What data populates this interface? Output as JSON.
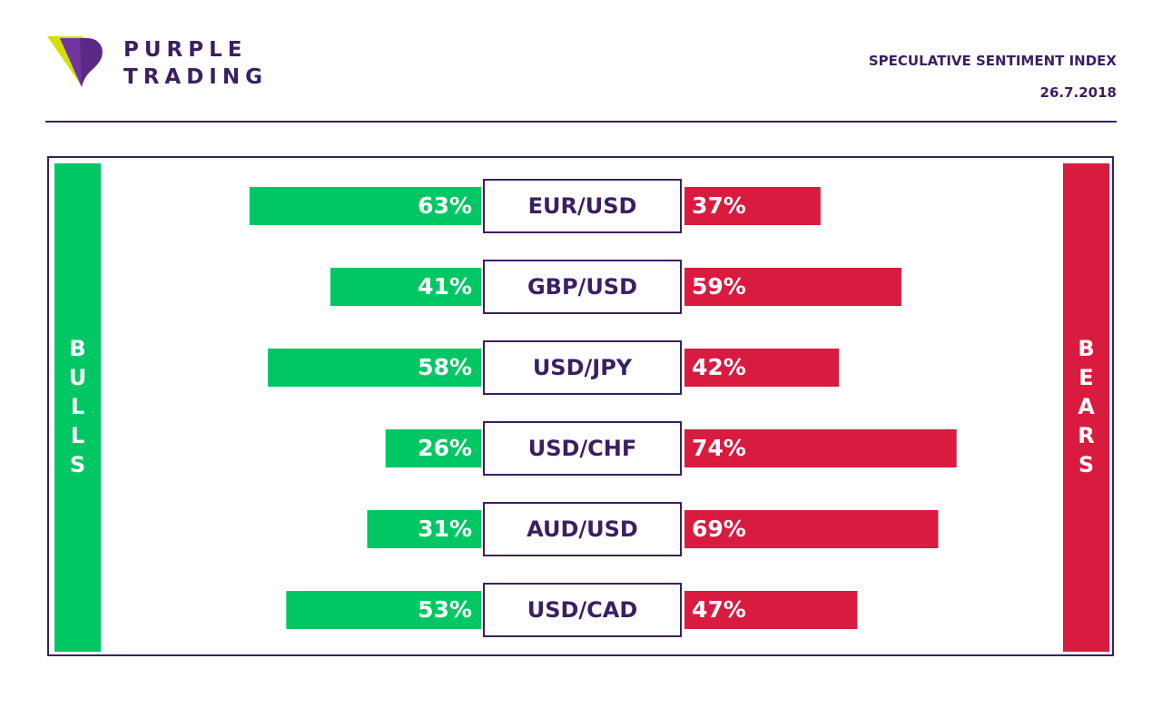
{
  "brand": {
    "line1": "PURPLE",
    "line2": "TRADING"
  },
  "header": {
    "title": "SPECULATIVE SENTIMENT INDEX",
    "date": "26.7.2018"
  },
  "colors": {
    "purple": "#3b1f62",
    "bulls": "#00c764",
    "bears": "#d81b3f",
    "logo_yellow": "#d3e000"
  },
  "chart_data": {
    "type": "bar",
    "orientation": "horizontal-diverging",
    "left_side_label": "BULLS",
    "right_side_label": "BEARS",
    "categories": [
      "EUR/USD",
      "GBP/USD",
      "USD/JPY",
      "USD/CHF",
      "AUD/USD",
      "USD/CAD"
    ],
    "series": [
      {
        "name": "BULLS",
        "values": [
          63,
          41,
          58,
          26,
          31,
          53
        ],
        "labels": [
          "63%",
          "41%",
          "58%",
          "26%",
          "31%",
          "53%"
        ]
      },
      {
        "name": "BEARS",
        "values": [
          37,
          59,
          42,
          74,
          69,
          47
        ],
        "labels": [
          "37%",
          "59%",
          "42%",
          "74%",
          "69%",
          "47%"
        ]
      }
    ],
    "unit": "%",
    "xlim": [
      0,
      100
    ],
    "grid": false,
    "legend": "side bars (left: bulls, right: bears)"
  }
}
